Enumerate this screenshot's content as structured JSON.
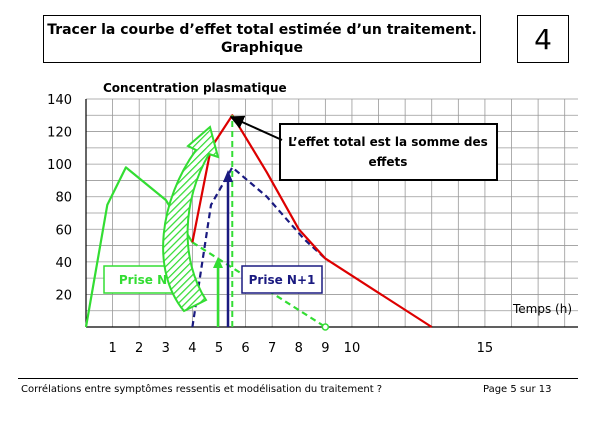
{
  "header": {
    "title_line1": "Tracer la courbe d’effet total estimée d’un traitement.",
    "title_line2": "Graphique",
    "slide_number": "4"
  },
  "footer": {
    "left_text": "Corrélations entre symptômes ressentis et modélisation du traitement ?",
    "right_text": "Page 5 sur 13"
  },
  "chart_data": {
    "type": "line",
    "ylabel": "Concentration plasmatique",
    "xlabel": "Temps (h)",
    "y_ticks": [
      20,
      40,
      60,
      80,
      100,
      120,
      140
    ],
    "x_tick_labels": [
      "1",
      "2",
      "3",
      "4",
      "5",
      "6",
      "7",
      "8",
      "9",
      "10",
      "15"
    ],
    "x_tick_values": [
      1,
      2,
      3,
      4,
      5,
      6,
      7,
      8,
      9,
      10,
      15
    ],
    "xlim": [
      0,
      18.5
    ],
    "ylim": [
      0,
      140
    ],
    "grid": true,
    "series": [
      {
        "color": "#33dd33",
        "style": "solid",
        "points": [
          [
            0,
            0
          ],
          [
            0.8,
            75
          ],
          [
            1.5,
            98
          ],
          [
            3,
            78
          ],
          [
            4,
            52
          ]
        ]
      },
      {
        "color": "#33dd33",
        "style": "dashed",
        "points": [
          [
            4,
            52
          ],
          [
            9,
            0
          ]
        ]
      },
      {
        "color": "#1a1a80",
        "style": "dashed",
        "points": [
          [
            4,
            0
          ],
          [
            4.7,
            75
          ],
          [
            5.5,
            98
          ],
          [
            6.8,
            80
          ],
          [
            8.2,
            54
          ],
          [
            9,
            42
          ]
        ]
      },
      {
        "color": "#dd0000",
        "style": "solid",
        "points": [
          [
            4,
            52
          ],
          [
            4.7,
            110
          ],
          [
            5.5,
            130
          ],
          [
            6.8,
            95
          ],
          [
            8,
            60
          ],
          [
            9,
            42
          ],
          [
            13,
            0
          ]
        ]
      }
    ],
    "annotations": {
      "callout": "L’effet total est la somme des effets",
      "prise_n": "Prise N",
      "prise_n1": "Prise N+1"
    }
  }
}
